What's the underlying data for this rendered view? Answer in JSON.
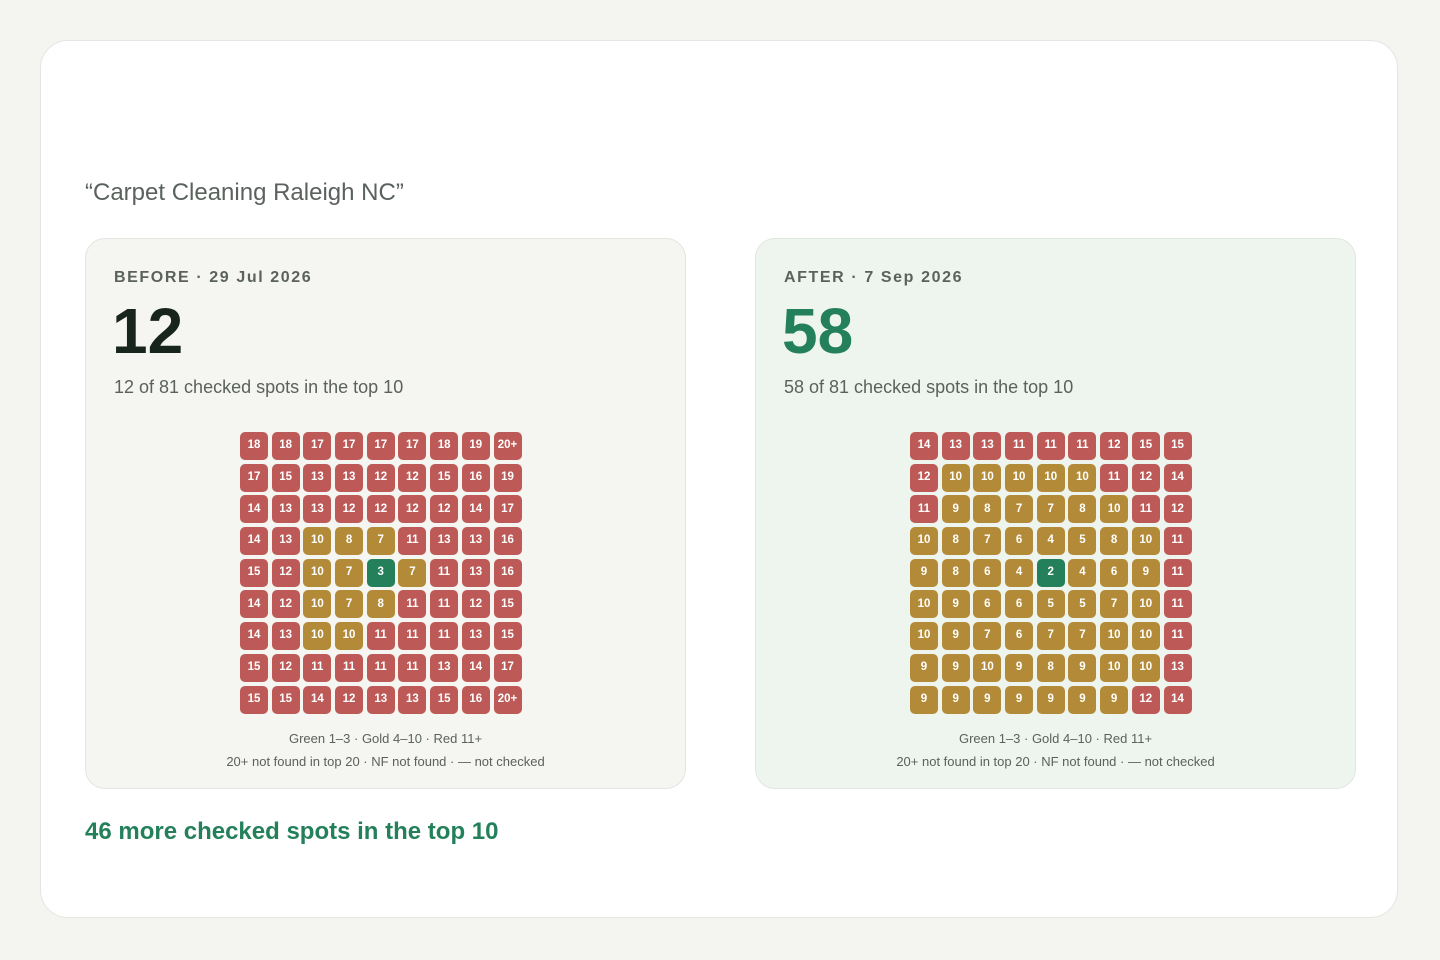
{
  "keyword": "“Carpet Cleaning Raleigh NC”",
  "colors": {
    "red": "#bd5a57",
    "gold": "#b38b38",
    "green": "#23805a",
    "after_accent": "#23805a"
  },
  "before": {
    "label": "BEFORE · 29 Jul 2026",
    "count": "12",
    "subtitle": "12 of 81 checked spots in the top 10",
    "grid": [
      [
        "18",
        "18",
        "17",
        "17",
        "17",
        "17",
        "18",
        "19",
        "20+"
      ],
      [
        "17",
        "15",
        "13",
        "13",
        "12",
        "12",
        "15",
        "16",
        "19"
      ],
      [
        "14",
        "13",
        "13",
        "12",
        "12",
        "12",
        "12",
        "14",
        "17"
      ],
      [
        "14",
        "13",
        "10",
        "8",
        "7",
        "11",
        "13",
        "13",
        "16"
      ],
      [
        "15",
        "12",
        "10",
        "7",
        "3",
        "7",
        "11",
        "13",
        "16"
      ],
      [
        "14",
        "12",
        "10",
        "7",
        "8",
        "11",
        "11",
        "12",
        "15"
      ],
      [
        "14",
        "13",
        "10",
        "10",
        "11",
        "11",
        "11",
        "13",
        "15"
      ],
      [
        "15",
        "12",
        "11",
        "11",
        "11",
        "11",
        "13",
        "14",
        "17"
      ],
      [
        "15",
        "15",
        "14",
        "12",
        "13",
        "13",
        "15",
        "16",
        "20+"
      ]
    ],
    "legend_line1": "Green 1–3 · Gold 4–10 · Red 11+",
    "legend_line2": "20+ not found in top 20 · NF not found · — not checked"
  },
  "after": {
    "label": "AFTER · 7 Sep 2026",
    "count": "58",
    "subtitle": "58 of 81 checked spots in the top 10",
    "grid": [
      [
        "14",
        "13",
        "13",
        "11",
        "11",
        "11",
        "12",
        "15",
        "15"
      ],
      [
        "12",
        "10",
        "10",
        "10",
        "10",
        "10",
        "11",
        "12",
        "14"
      ],
      [
        "11",
        "9",
        "8",
        "7",
        "7",
        "8",
        "10",
        "11",
        "12"
      ],
      [
        "10",
        "8",
        "7",
        "6",
        "4",
        "5",
        "8",
        "10",
        "11"
      ],
      [
        "9",
        "8",
        "6",
        "4",
        "2",
        "4",
        "6",
        "9",
        "11"
      ],
      [
        "10",
        "9",
        "6",
        "6",
        "5",
        "5",
        "7",
        "10",
        "11"
      ],
      [
        "10",
        "9",
        "7",
        "6",
        "7",
        "7",
        "10",
        "10",
        "11"
      ],
      [
        "9",
        "9",
        "10",
        "9",
        "8",
        "9",
        "10",
        "10",
        "13"
      ],
      [
        "9",
        "9",
        "9",
        "9",
        "9",
        "9",
        "9",
        "12",
        "14"
      ]
    ],
    "legend_line1": "Green 1–3 · Gold 4–10 · Red 11+",
    "legend_line2": "20+ not found in top 20 · NF not found · — not checked"
  },
  "summary": "46 more checked spots in the top 10"
}
